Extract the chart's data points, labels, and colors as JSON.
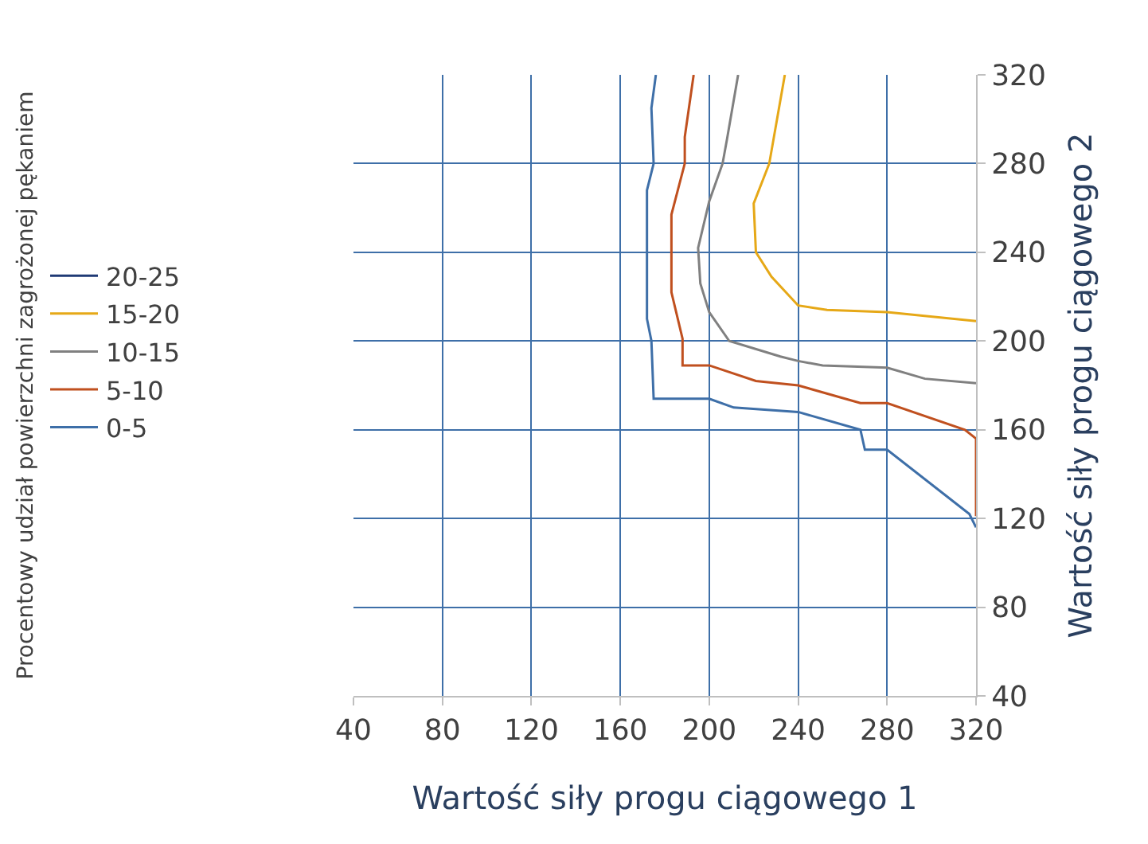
{
  "chart_data": {
    "type": "line",
    "xlabel": "Wartość siły progu ciągowego 1",
    "y2label": "Wartość siły progu ciągowego 2",
    "legend_title": "Procentowy udział powierzchni zagrożonej pękaniem",
    "xlim": [
      40,
      320
    ],
    "xticks": [
      40,
      80,
      120,
      160,
      200,
      240,
      280,
      320
    ],
    "y2lim": [
      40,
      320
    ],
    "y2ticks": [
      40,
      80,
      120,
      160,
      200,
      240,
      280,
      320
    ],
    "grid": true,
    "legend": "left",
    "marker": "none",
    "line_style": "solid",
    "series": [
      {
        "name": "20-25",
        "color": "#1f3a75",
        "axis": "y2"
      },
      {
        "name": "15-20",
        "color": "#e6a817",
        "axis": "y2",
        "x": [
          234,
          227,
          220,
          221,
          228,
          240,
          253,
          280,
          320
        ],
        "values": [
          320,
          280,
          262,
          240,
          229,
          216,
          214,
          213,
          209
        ]
      },
      {
        "name": "10-15",
        "color": "#808080",
        "axis": "y2",
        "x": [
          213,
          208,
          206,
          200,
          195,
          196,
          200,
          209,
          232,
          240,
          251,
          280,
          297,
          320
        ],
        "values": [
          320,
          291,
          280,
          263,
          242,
          226,
          213,
          200,
          193,
          191,
          189,
          188,
          183,
          181
        ]
      },
      {
        "name": "5-10",
        "color": "#c0501f",
        "axis": "y2",
        "x": [
          193,
          189,
          189,
          183,
          183,
          188,
          188,
          200,
          221,
          240,
          268,
          280,
          315,
          320,
          320
        ],
        "values": [
          320,
          292,
          280,
          257,
          222,
          201,
          189,
          189,
          182,
          180,
          172,
          172,
          160,
          156,
          121
        ]
      },
      {
        "name": "0-5",
        "color": "#3e6fa8",
        "axis": "y2",
        "x": [
          176,
          174,
          175,
          172,
          172,
          174,
          175,
          200,
          211,
          240,
          268,
          270,
          280,
          317,
          320
        ],
        "values": [
          320,
          305,
          280,
          268,
          210,
          200,
          174,
          174,
          170,
          168,
          160,
          151,
          151,
          122,
          116
        ]
      }
    ]
  }
}
